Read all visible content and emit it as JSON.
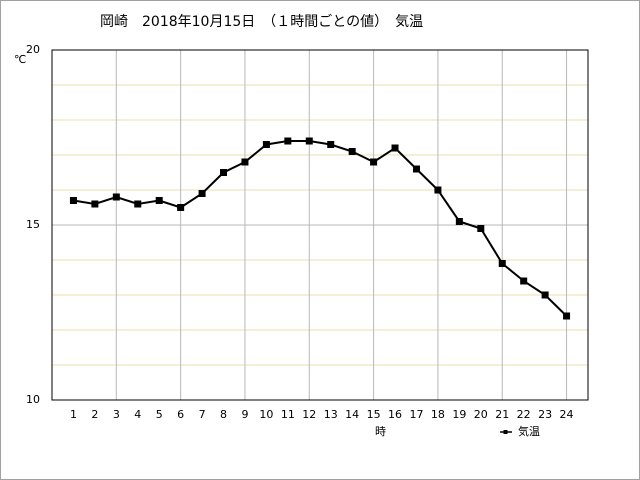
{
  "chart_data": {
    "type": "line",
    "title": "岡崎　2018年10月15日　（１時間ごとの値）　気温",
    "y_label": "℃",
    "x_label": "時",
    "x": [
      1,
      2,
      3,
      4,
      5,
      6,
      7,
      8,
      9,
      10,
      11,
      12,
      13,
      14,
      15,
      16,
      17,
      18,
      19,
      20,
      21,
      22,
      23,
      24
    ],
    "series": [
      {
        "name": "気温",
        "color": "#000000",
        "values": [
          15.7,
          15.6,
          15.8,
          15.6,
          15.7,
          15.5,
          15.9,
          16.5,
          16.8,
          17.3,
          17.4,
          17.4,
          17.3,
          17.1,
          16.8,
          17.2,
          16.6,
          16.0,
          15.1,
          14.9,
          13.9,
          13.4,
          13.0,
          12.4
        ]
      }
    ],
    "xlim": [
      0,
      25
    ],
    "xticks": [
      1,
      2,
      3,
      4,
      5,
      6,
      7,
      8,
      9,
      10,
      11,
      12,
      13,
      14,
      15,
      16,
      17,
      18,
      19,
      20,
      21,
      22,
      23,
      24
    ],
    "x_grid_ticks": [
      3,
      6,
      9,
      12,
      15,
      18,
      21,
      24
    ],
    "ylim": [
      10,
      20
    ],
    "yticks": [
      10,
      15,
      20
    ],
    "minor_yticks": [
      11,
      12,
      13,
      14,
      16,
      17,
      18,
      19
    ],
    "grid": true
  }
}
